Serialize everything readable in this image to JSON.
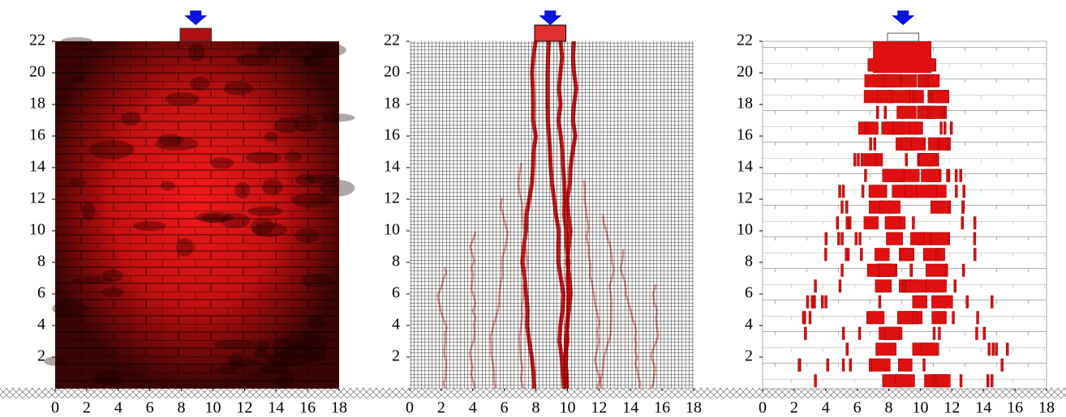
{
  "panels": [
    {
      "xlim": [
        0,
        18
      ],
      "ylim": [
        0,
        22
      ],
      "xticks": [
        0,
        2,
        4,
        6,
        8,
        10,
        12,
        14,
        16,
        18
      ],
      "yticks": [
        2,
        4,
        6,
        8,
        10,
        12,
        14,
        16,
        18,
        20,
        22
      ]
    },
    {
      "xlim": [
        0,
        18
      ],
      "ylim": [
        0,
        22
      ],
      "xticks": [
        0,
        2,
        4,
        6,
        8,
        10,
        12,
        14,
        16,
        18
      ],
      "yticks": [
        2,
        4,
        6,
        8,
        10,
        12,
        14,
        16,
        18,
        20,
        22
      ]
    },
    {
      "xlim": [
        0,
        18
      ],
      "ylim": [
        0,
        22
      ],
      "xticks": [
        0,
        2,
        4,
        6,
        8,
        10,
        12,
        14,
        16,
        18
      ],
      "yticks": [
        2,
        4,
        6,
        8,
        10,
        12,
        14,
        16,
        18,
        20,
        22
      ]
    }
  ]
}
